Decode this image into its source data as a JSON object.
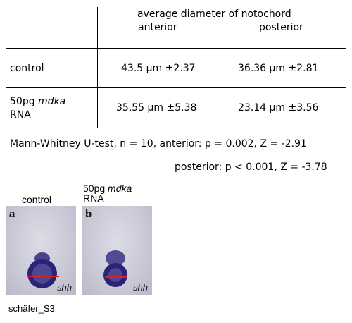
{
  "table": {
    "header_title": "average diameter of notochord",
    "col_anterior": "anterior",
    "col_posterior": "posterior",
    "rows": [
      {
        "label_line1": "control",
        "label_line2": "",
        "anterior": "43.5 μm ±2.37",
        "posterior": "36.36 μm ±2.81"
      },
      {
        "label_line1_prefix": "50pg ",
        "label_line1_italic": "mdka",
        "label_line2": "RNA",
        "anterior": "35.55 μm ±5.38",
        "posterior": "23.14 μm ±3.56"
      }
    ]
  },
  "stats": {
    "line1": "Mann-Whitney U-test, n = 10, anterior: p = 0.002, Z = -2.91",
    "line2": "posterior: p < 0.001, Z = -3.78"
  },
  "figure": {
    "label_control": "control",
    "label_mdka_prefix": "50pg ",
    "label_mdka_italic": "mdka",
    "label_mdka_line2": "RNA",
    "panel_a_letter": "a",
    "panel_b_letter": "b",
    "gene_label": "shh",
    "stain_color": "#2a2376",
    "measure_line_color": "#e02020"
  },
  "caption": "schäfer_S3"
}
